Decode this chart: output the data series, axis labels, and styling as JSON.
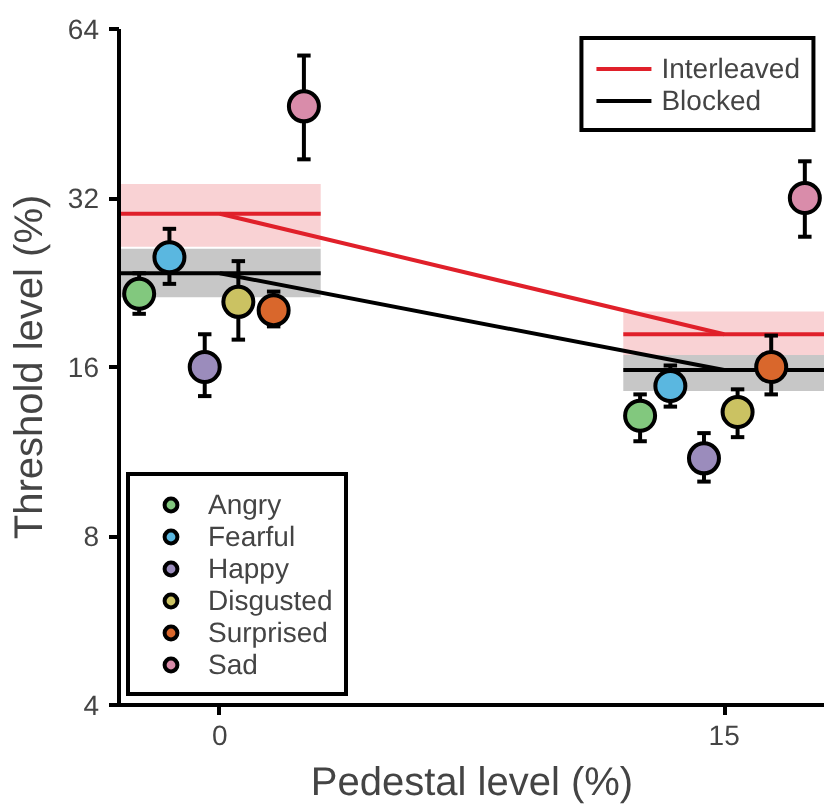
{
  "chart_data": {
    "type": "scatter",
    "xlabel": "Pedestal level (%)",
    "ylabel": "Threshold level (%)",
    "log": "y",
    "xlim": [
      -3,
      18
    ],
    "ylim": [
      4,
      64
    ],
    "xticks": [
      0,
      15
    ],
    "yticks": [
      4,
      8,
      16,
      32,
      64
    ],
    "grid": false,
    "legend": "top right",
    "series": [
      {
        "type": "line",
        "x": [
          -3,
          3
        ],
        "values": [
          30,
          30
        ],
        "lower": [
          26.2,
          26.2
        ],
        "upper": [
          33.9,
          33.9
        ],
        "color": "#e0202a"
      },
      {
        "type": "line",
        "x": [
          12,
          18
        ],
        "values": [
          18.3,
          18.3
        ],
        "lower": [
          16.8,
          16.8
        ],
        "upper": [
          20.1,
          20.1
        ],
        "color": "#e0202a"
      },
      {
        "type": "line",
        "x": [
          -3,
          3
        ],
        "values": [
          23.5,
          23.5
        ],
        "lower": [
          21.3,
          21.3
        ],
        "upper": [
          26.0,
          26.0
        ],
        "color": "#000000"
      },
      {
        "type": "line",
        "x": [
          12,
          18
        ],
        "values": [
          15.8,
          15.8
        ],
        "lower": [
          14.5,
          14.5
        ],
        "upper": [
          16.8,
          16.8
        ],
        "color": "#000000"
      },
      {
        "type": "line",
        "name": "Interleaved",
        "x": [
          0,
          15
        ],
        "values": [
          30,
          18.3
        ],
        "color": "#e0202a"
      },
      {
        "type": "line",
        "name": "Blocked",
        "x": [
          0,
          15
        ],
        "values": [
          23.5,
          15.8
        ],
        "color": "#000000"
      },
      {
        "marker": "circle",
        "name": "Angry",
        "x": [
          -2.4,
          12.5
        ],
        "values": [
          21.6,
          13.1
        ],
        "errors": [
          [
            19.9,
            23.5
          ],
          [
            11.8,
            14.3
          ]
        ],
        "color": "#82c87e"
      },
      {
        "marker": "circle",
        "name": "Fearful",
        "x": [
          -1.5,
          13.4
        ],
        "values": [
          25.1,
          14.8
        ],
        "errors": [
          [
            22.5,
            28.2
          ],
          [
            13.6,
            16.1
          ]
        ],
        "color": "#5ab7e0"
      },
      {
        "marker": "circle",
        "name": "Happy",
        "x": [
          -0.45,
          14.4
        ],
        "values": [
          16.0,
          11.0
        ],
        "errors": [
          [
            14.2,
            18.3
          ],
          [
            10.0,
            12.2
          ]
        ],
        "color": "#9b8cbc"
      },
      {
        "marker": "circle",
        "name": "Disgusted",
        "x": [
          0.55,
          15.4
        ],
        "values": [
          20.9,
          13.3
        ],
        "errors": [
          [
            17.9,
            24.7
          ],
          [
            12.0,
            14.6
          ]
        ],
        "color": "#cbc262"
      },
      {
        "marker": "circle",
        "name": "Surprised",
        "x": [
          1.6,
          16.4
        ],
        "values": [
          20.2,
          16.0
        ],
        "errors": [
          [
            18.9,
            21.8
          ],
          [
            14.3,
            18.2
          ]
        ],
        "color": "#d9672c"
      },
      {
        "marker": "circle",
        "name": "Sad",
        "x": [
          2.5,
          17.4
        ],
        "values": [
          46.6,
          32.0
        ],
        "errors": [
          [
            37.5,
            57.4
          ],
          [
            27.3,
            37.2
          ]
        ],
        "color": "#d98caa"
      }
    ]
  }
}
